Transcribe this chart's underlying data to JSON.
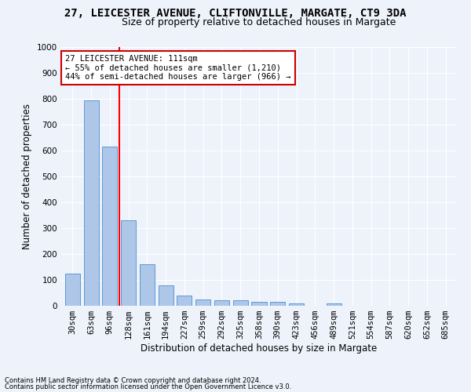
{
  "title1": "27, LEICESTER AVENUE, CLIFTONVILLE, MARGATE, CT9 3DA",
  "title2": "Size of property relative to detached houses in Margate",
  "xlabel": "Distribution of detached houses by size in Margate",
  "ylabel": "Number of detached properties",
  "categories": [
    "30sqm",
    "63sqm",
    "96sqm",
    "128sqm",
    "161sqm",
    "194sqm",
    "227sqm",
    "259sqm",
    "292sqm",
    "325sqm",
    "358sqm",
    "390sqm",
    "423sqm",
    "456sqm",
    "489sqm",
    "521sqm",
    "554sqm",
    "587sqm",
    "620sqm",
    "652sqm",
    "685sqm"
  ],
  "values": [
    125,
    795,
    615,
    330,
    160,
    80,
    40,
    25,
    22,
    20,
    15,
    15,
    10,
    0,
    10,
    0,
    0,
    0,
    0,
    0,
    0
  ],
  "bar_color": "#aec6e8",
  "bar_edge_color": "#5b9bd5",
  "bar_width": 0.8,
  "red_line_x": 2.5,
  "annotation_line1": "27 LEICESTER AVENUE: 111sqm",
  "annotation_line2": "← 55% of detached houses are smaller (1,210)",
  "annotation_line3": "44% of semi-detached houses are larger (966) →",
  "annotation_box_color": "#ffffff",
  "annotation_box_edge": "#cc0000",
  "ylim": [
    0,
    1000
  ],
  "yticks": [
    0,
    100,
    200,
    300,
    400,
    500,
    600,
    700,
    800,
    900,
    1000
  ],
  "footer1": "Contains HM Land Registry data © Crown copyright and database right 2024.",
  "footer2": "Contains public sector information licensed under the Open Government Licence v3.0.",
  "bg_color": "#eef2fb",
  "plot_bg_color": "#eef2fb",
  "grid_color": "#ffffff",
  "title1_fontsize": 10,
  "title2_fontsize": 9,
  "tick_fontsize": 7.5,
  "ylabel_fontsize": 8.5,
  "xlabel_fontsize": 8.5
}
